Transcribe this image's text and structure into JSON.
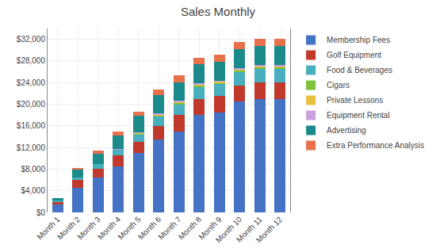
{
  "chart_data": {
    "type": "bar",
    "title": "Sales Monthly",
    "categories": [
      "Month 1",
      "Month 2",
      "Month 3",
      "Month 4",
      "Month 5",
      "Month 6",
      "Month 7",
      "Month 8",
      "Month 9",
      "Month 10",
      "Month 11",
      "Month 12"
    ],
    "series": [
      {
        "name": "Membership Fees",
        "color": "#4472C4",
        "values": [
          1500,
          4500,
          6500,
          8500,
          11000,
          13500,
          15000,
          18000,
          18500,
          20500,
          21000,
          21000
        ]
      },
      {
        "name": "Golf Equipment",
        "color": "#C0392B",
        "values": [
          500,
          1500,
          1500,
          2000,
          2000,
          2500,
          3000,
          3000,
          3000,
          3000,
          3000,
          3000
        ]
      },
      {
        "name": "Food & Beverages",
        "color": "#47AFBE",
        "values": [
          200,
          500,
          900,
          1100,
          1400,
          1700,
          2000,
          2200,
          2200,
          2400,
          2500,
          2500
        ]
      },
      {
        "name": "Cigars",
        "color": "#7EC13A",
        "values": [
          0,
          0,
          0,
          0,
          250,
          300,
          300,
          300,
          300,
          350,
          350,
          350
        ]
      },
      {
        "name": "Private Lessons",
        "color": "#E8C040",
        "values": [
          0,
          0,
          0,
          0,
          100,
          150,
          150,
          200,
          200,
          200,
          200,
          200
        ]
      },
      {
        "name": "Equipment Rental",
        "color": "#C9A0DC",
        "values": [
          0,
          0,
          0,
          100,
          100,
          100,
          150,
          150,
          150,
          200,
          200,
          200
        ]
      },
      {
        "name": "Advertising",
        "color": "#1A8A8A",
        "values": [
          500,
          1500,
          2000,
          2500,
          3000,
          3500,
          3500,
          3500,
          3500,
          3500,
          3500,
          3500
        ]
      },
      {
        "name": "Extra Performance Analysis",
        "color": "#E8704A",
        "values": [
          0,
          200,
          500,
          700,
          800,
          1000,
          1200,
          1300,
          1300,
          1350,
          1350,
          1350
        ]
      }
    ],
    "stacked": true,
    "ylim": [
      0,
      34000
    ],
    "yticks": [
      {
        "value": 0,
        "label": "$0"
      },
      {
        "value": 4000,
        "label": "$4,000"
      },
      {
        "value": 8000,
        "label": "$8,000"
      },
      {
        "value": 12000,
        "label": "$12,000"
      },
      {
        "value": 16000,
        "label": "$16,000"
      },
      {
        "value": 20000,
        "label": "$20,000"
      },
      {
        "value": 24000,
        "label": "$24,000"
      },
      {
        "value": 28000,
        "label": "$28,000"
      },
      {
        "value": 32000,
        "label": "$32,000"
      }
    ],
    "grid": true,
    "legend": "right"
  }
}
